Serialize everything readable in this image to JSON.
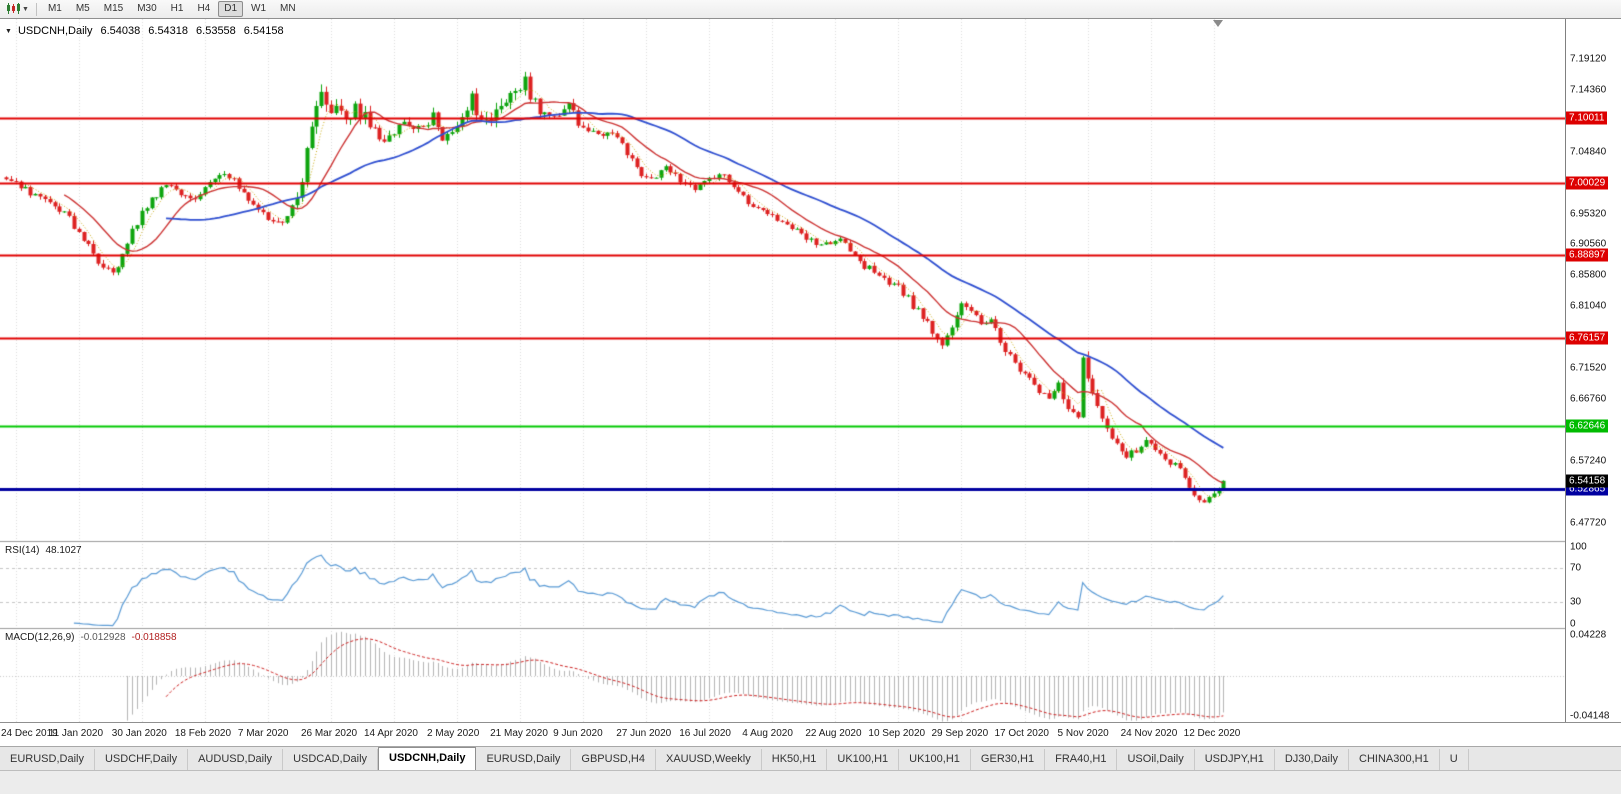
{
  "icons": {
    "collapse": "▼",
    "toolbar_dropdown": "▼"
  },
  "toolbar": {
    "timeframes": [
      "M1",
      "M5",
      "M15",
      "M30",
      "H1",
      "H4",
      "D1",
      "W1",
      "MN"
    ],
    "active_timeframe": "D1"
  },
  "chart": {
    "symbol_title": "USDCNH,Daily",
    "open": "6.54038",
    "high": "6.54318",
    "low": "6.53558",
    "close": "6.54158"
  },
  "price_scale": {
    "ticks": [
      {
        "text": "7.19120",
        "value": 7.1912
      },
      {
        "text": "7.14360",
        "value": 7.1436
      },
      {
        "text": "7.04840",
        "value": 7.0484
      },
      {
        "text": "6.95320",
        "value": 6.9532
      },
      {
        "text": "6.90560",
        "value": 6.9056
      },
      {
        "text": "6.85800",
        "value": 6.858
      },
      {
        "text": "6.81040",
        "value": 6.8104
      },
      {
        "text": "6.71520",
        "value": 6.7152
      },
      {
        "text": "6.66760",
        "value": 6.6676
      },
      {
        "text": "6.57240",
        "value": 6.5724
      },
      {
        "text": "6.47720",
        "value": 6.4772
      }
    ],
    "badges": [
      {
        "name": "red-line-badge",
        "text": "7.10011",
        "value": 7.10011,
        "bg": "#dd0000",
        "fg": "#ffffff",
        "z": 1
      },
      {
        "name": "red-line-badge",
        "text": "7.00029",
        "value": 7.00029,
        "bg": "#dd0000",
        "fg": "#ffffff",
        "z": 1
      },
      {
        "name": "red-line-badge",
        "text": "6.88897",
        "value": 6.88897,
        "bg": "#dd0000",
        "fg": "#ffffff",
        "z": 1
      },
      {
        "name": "red-line-badge",
        "text": "6.76157",
        "value": 6.76157,
        "bg": "#dd0000",
        "fg": "#ffffff",
        "z": 1
      },
      {
        "name": "green-line-badge",
        "text": "6.62646",
        "value": 6.62646,
        "bg": "#00bb00",
        "fg": "#ffffff",
        "z": 1
      },
      {
        "name": "current-price-badge",
        "text": "6.54158",
        "value": 6.54158,
        "bg": "#000000",
        "fg": "#ffffff",
        "z": 3
      },
      {
        "name": "blue-line-badge",
        "text": "6.52865",
        "value": 6.52865,
        "bg": "#0000a0",
        "fg": "#ffffff",
        "z": 2
      }
    ]
  },
  "hlines": [
    {
      "price": 7.10011,
      "color": "#e00000",
      "w": 2
    },
    {
      "price": 7.00029,
      "color": "#e00000",
      "w": 2
    },
    {
      "price": 6.88897,
      "color": "#e00000",
      "w": 2
    },
    {
      "price": 6.76157,
      "color": "#e00000",
      "w": 2
    },
    {
      "price": 6.62646,
      "color": "#00c800",
      "w": 2
    },
    {
      "price": 6.52865,
      "color": "#0000a0",
      "w": 3
    }
  ],
  "rsi_panel": {
    "name": "RSI(14)",
    "value": "48.1027",
    "line_color": "#5b9bd5",
    "levels": [
      {
        "text": "100",
        "value": 100,
        "dashed": false
      },
      {
        "text": "70",
        "value": 70,
        "dashed": true
      },
      {
        "text": "30",
        "value": 30,
        "dashed": true
      },
      {
        "text": "0",
        "value": 0,
        "dashed": false
      }
    ]
  },
  "macd_panel": {
    "name": "MACD(12,26,9)",
    "main_value": "-0.012928",
    "signal_value": "-0.018858",
    "hist_color": "#b4b4b4",
    "signal_color": "#cc2222",
    "axis": [
      {
        "text": "0.04228",
        "value": 0.04228
      },
      {
        "text": "-0.04148",
        "value": -0.04148
      }
    ]
  },
  "time_axis": {
    "labels": [
      "24 Dec 2019",
      "11 Jan 2020",
      "30 Jan 2020",
      "18 Feb 2020",
      "7 Mar 2020",
      "26 Mar 2020",
      "14 Apr 2020",
      "2 May 2020",
      "21 May 2020",
      "9 Jun 2020",
      "27 Jun 2020",
      "16 Jul 2020",
      "4 Aug 2020",
      "22 Aug 2020",
      "10 Sep 2020",
      "29 Sep 2020",
      "17 Oct 2020",
      "5 Nov 2020",
      "24 Nov 2020",
      "12 Dec 2020"
    ]
  },
  "tabs": {
    "items": [
      "EURUSD,Daily",
      "USDCHF,Daily",
      "AUDUSD,Daily",
      "USDCAD,Daily",
      "USDCNH,Daily",
      "EURUSD,Daily",
      "GBPUSD,H4",
      "XAUUSD,Weekly",
      "HK50,H1",
      "UK100,H1",
      "UK100,H1",
      "GER30,H1",
      "FRA40,H1",
      "USOil,Daily",
      "USDJPY,H1",
      "DJ30,Daily",
      "CHINA300,H1",
      "U"
    ],
    "active_index": 4
  },
  "colors": {
    "candle_up": "#0ea50e",
    "candle_down": "#dd2222",
    "grid": "#dcdcdc",
    "panel_divider": "#9a9a9a",
    "ma_fast_dotted": "#c8a80f",
    "ma_mid": "#cc3333",
    "ma_slow": "#2f4fd0"
  },
  "chart_data": {
    "type": "candlestick",
    "symbol": "USDCNH",
    "timeframe": "Daily",
    "title": "USDCNH,Daily 6.54038 6.54318 6.53558 6.54158",
    "visible_range": {
      "price_top": 7.2528,
      "price_bottom": 6.4489
    },
    "x_ticks": {
      "first_candle_index": 2,
      "step": 13
    },
    "candles": {
      "count": 252,
      "seed": 7,
      "anchors_idx": [
        0,
        4,
        8,
        12,
        16,
        19,
        22,
        24,
        26,
        28,
        30,
        33,
        36,
        39,
        42,
        45,
        48,
        51,
        54,
        57,
        59,
        61,
        63,
        65,
        66,
        68,
        70,
        72,
        74,
        76,
        78,
        80,
        82,
        84,
        86,
        88,
        90,
        92,
        94,
        96,
        98,
        100,
        102,
        104,
        106,
        107,
        108,
        110,
        112,
        114,
        116,
        118,
        120,
        122,
        124,
        126,
        128,
        130,
        132,
        134,
        136,
        138,
        140,
        142,
        144,
        146,
        148,
        150,
        152,
        154,
        156,
        158,
        160,
        162,
        164,
        166,
        168,
        170,
        172,
        174,
        176,
        178,
        180,
        182,
        184,
        186,
        188,
        190,
        192,
        193,
        195,
        197,
        199,
        201,
        203,
        205,
        207,
        209,
        211,
        213,
        215,
        217,
        219,
        221,
        222,
        223,
        225,
        227,
        229,
        231,
        233,
        235,
        237,
        239,
        241,
        243,
        245,
        247,
        249,
        251
      ],
      "anchors_close": [
        7.005,
        6.99,
        6.975,
        6.955,
        6.915,
        6.878,
        6.862,
        6.888,
        6.925,
        6.952,
        6.975,
        6.995,
        6.985,
        6.978,
        7.002,
        7.018,
        6.995,
        6.968,
        6.945,
        6.94,
        6.965,
        7.01,
        7.085,
        7.145,
        7.11,
        7.125,
        7.09,
        7.12,
        7.1,
        7.085,
        7.065,
        7.075,
        7.092,
        7.082,
        7.09,
        7.108,
        7.072,
        7.085,
        7.102,
        7.128,
        7.1,
        7.108,
        7.12,
        7.135,
        7.155,
        7.168,
        7.14,
        7.115,
        7.102,
        7.11,
        7.118,
        7.095,
        7.082,
        7.072,
        7.082,
        7.068,
        7.045,
        7.022,
        7.008,
        7.012,
        7.022,
        7.012,
        6.998,
        6.992,
        7.002,
        7.008,
        7.012,
        6.995,
        6.978,
        6.965,
        6.958,
        6.948,
        6.938,
        6.928,
        6.922,
        6.912,
        6.902,
        6.908,
        6.915,
        6.895,
        6.878,
        6.868,
        6.858,
        6.848,
        6.838,
        6.822,
        6.802,
        6.785,
        6.762,
        6.752,
        6.775,
        6.812,
        6.798,
        6.788,
        6.792,
        6.758,
        6.732,
        6.712,
        6.698,
        6.682,
        6.672,
        6.688,
        6.658,
        6.642,
        6.718,
        6.692,
        6.655,
        6.618,
        6.598,
        6.578,
        6.59,
        6.601,
        6.588,
        6.572,
        6.566,
        6.548,
        6.522,
        6.505,
        6.522,
        6.5416
      ],
      "vol_idx": [
        0,
        20,
        40,
        58,
        62,
        70,
        85,
        88,
        92,
        95,
        107,
        115,
        130,
        150,
        170,
        190,
        205,
        221,
        222,
        224,
        240,
        251
      ],
      "vol_val": [
        0.01,
        0.012,
        0.01,
        0.012,
        0.028,
        0.022,
        0.014,
        0.024,
        0.015,
        0.02,
        0.026,
        0.014,
        0.01,
        0.009,
        0.01,
        0.012,
        0.012,
        0.014,
        0.03,
        0.012,
        0.009,
        0.008
      ]
    },
    "overlays": [
      {
        "name": "ma-fast-dotted",
        "period": 5,
        "style": "dotted"
      },
      {
        "name": "ma-mid-red",
        "period": 13,
        "style": "solid"
      },
      {
        "name": "ma-slow-blue",
        "period": 34,
        "style": "solid"
      }
    ],
    "indicators": [
      {
        "name": "RSI",
        "period": 14,
        "current": 48.1027
      },
      {
        "name": "MACD",
        "fast": 12,
        "slow": 26,
        "signal": 9,
        "main": -0.012928,
        "signal_value": -0.018858
      }
    ]
  }
}
